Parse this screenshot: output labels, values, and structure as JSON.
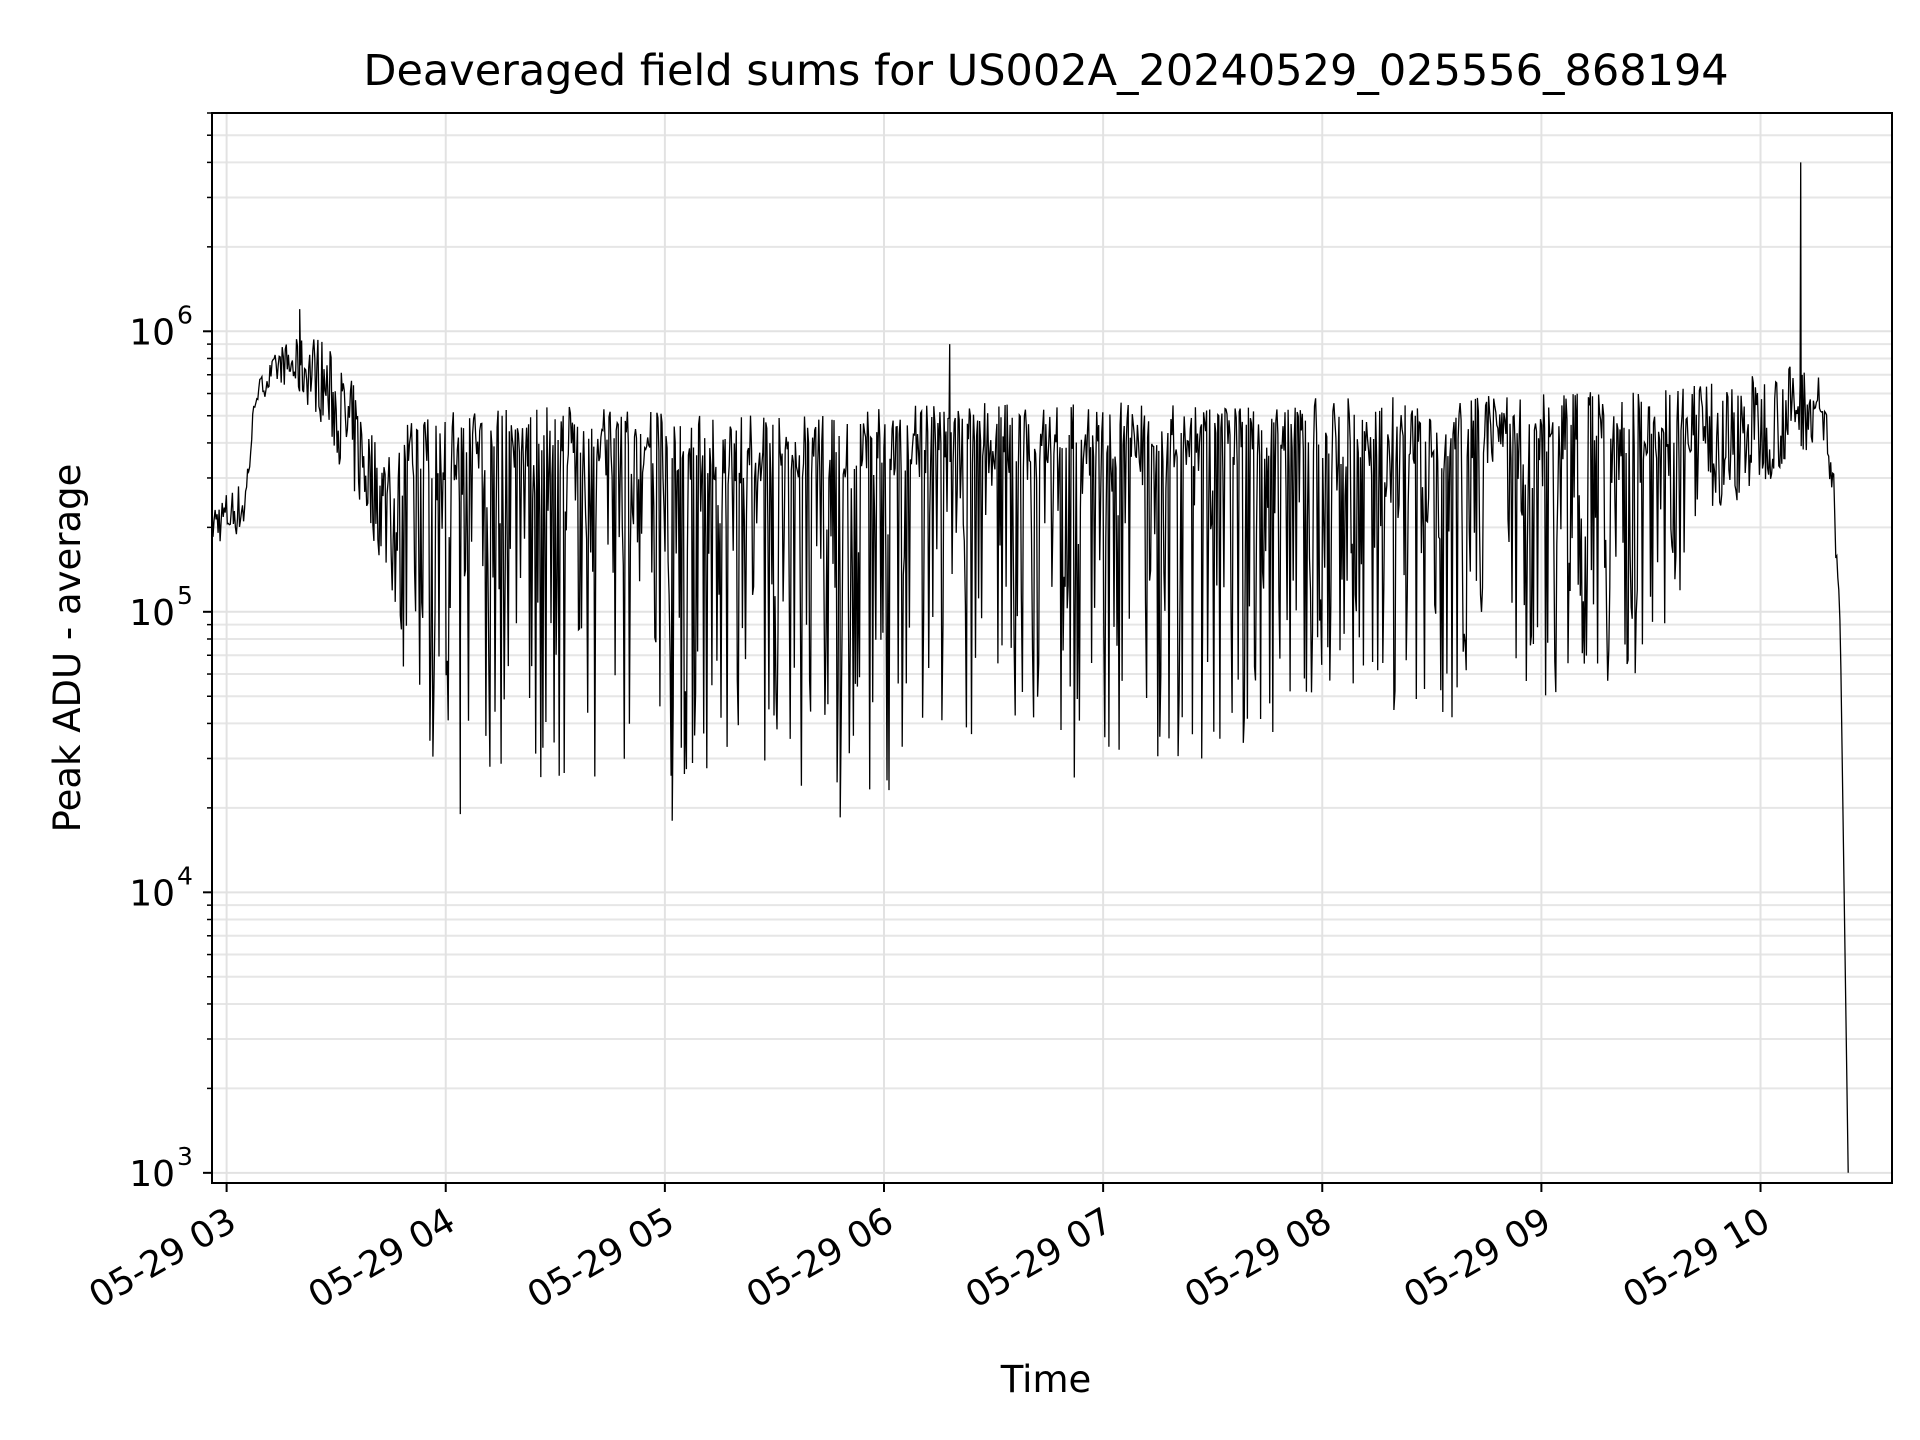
{
  "chart_data": {
    "type": "line",
    "title": "Deaveraged field sums for US002A_20240529_025556_868194",
    "xlabel": "Time",
    "ylabel": "Peak ADU - average",
    "yscale": "log",
    "ylim": [
      920,
      6000000
    ],
    "xlim": [
      "2024-05-29 02:56",
      "2024-05-29 10:36"
    ],
    "grid": true,
    "x_ticks": [
      {
        "value": "2024-05-29 03:00",
        "label": "05-29 03"
      },
      {
        "value": "2024-05-29 04:00",
        "label": "05-29 04"
      },
      {
        "value": "2024-05-29 05:00",
        "label": "05-29 05"
      },
      {
        "value": "2024-05-29 06:00",
        "label": "05-29 06"
      },
      {
        "value": "2024-05-29 07:00",
        "label": "05-29 07"
      },
      {
        "value": "2024-05-29 08:00",
        "label": "05-29 08"
      },
      {
        "value": "2024-05-29 09:00",
        "label": "05-29 09"
      },
      {
        "value": "2024-05-29 10:00",
        "label": "05-29 10"
      }
    ],
    "y_ticks": [
      {
        "value": 1000,
        "base": "10",
        "exp": "3"
      },
      {
        "value": 10000,
        "base": "10",
        "exp": "4"
      },
      {
        "value": 100000,
        "base": "10",
        "exp": "5"
      },
      {
        "value": 1000000,
        "base": "10",
        "exp": "6"
      }
    ],
    "series": [
      {
        "color": "#000000",
        "style": "line",
        "envelope": {
          "x": [
            "2024-05-29 02:56",
            "2024-05-29 03:05",
            "2024-05-29 03:08",
            "2024-05-29 03:15",
            "2024-05-29 03:25",
            "2024-05-29 03:35",
            "2024-05-29 03:40",
            "2024-05-29 03:45",
            "2024-05-29 03:50",
            "2024-05-29 04:00",
            "2024-05-29 04:30",
            "2024-05-29 05:00",
            "2024-05-29 05:30",
            "2024-05-29 06:00",
            "2024-05-29 06:30",
            "2024-05-29 07:00",
            "2024-05-29 07:30",
            "2024-05-29 08:00",
            "2024-05-29 08:30",
            "2024-05-29 09:00",
            "2024-05-29 09:30",
            "2024-05-29 09:45",
            "2024-05-29 10:00",
            "2024-05-29 10:10",
            "2024-05-29 10:15",
            "2024-05-29 10:18",
            "2024-05-29 10:20",
            "2024-05-29 10:22"
          ],
          "upper": [
            250000,
            300000,
            650000,
            900000,
            1000000,
            650000,
            450000,
            400000,
            480000,
            520000,
            540000,
            520000,
            500000,
            540000,
            560000,
            560000,
            550000,
            580000,
            600000,
            600000,
            620000,
            650000,
            720000,
            780000,
            750000,
            600000,
            350000,
            80000
          ],
          "lower": [
            170000,
            190000,
            550000,
            650000,
            500000,
            250000,
            180000,
            120000,
            40000,
            25000,
            25000,
            25000,
            24000,
            23000,
            24000,
            26000,
            30000,
            35000,
            40000,
            50000,
            60000,
            200000,
            280000,
            350000,
            400000,
            350000,
            200000,
            60000
          ]
        },
        "spikes": [
          {
            "x": "2024-05-29 03:20",
            "y": 1200000
          },
          {
            "x": "2024-05-29 06:18",
            "y": 900000
          },
          {
            "x": "2024-05-29 10:11",
            "y": 4000000
          },
          {
            "x": "2024-05-29 05:02",
            "y": 18000
          },
          {
            "x": "2024-05-29 05:48",
            "y": 18500
          },
          {
            "x": "2024-05-29 04:04",
            "y": 19000
          },
          {
            "x": "2024-05-29 07:27",
            "y": 30000
          }
        ],
        "final_drop": {
          "x": "2024-05-29 10:24",
          "y": 1000
        }
      }
    ]
  }
}
